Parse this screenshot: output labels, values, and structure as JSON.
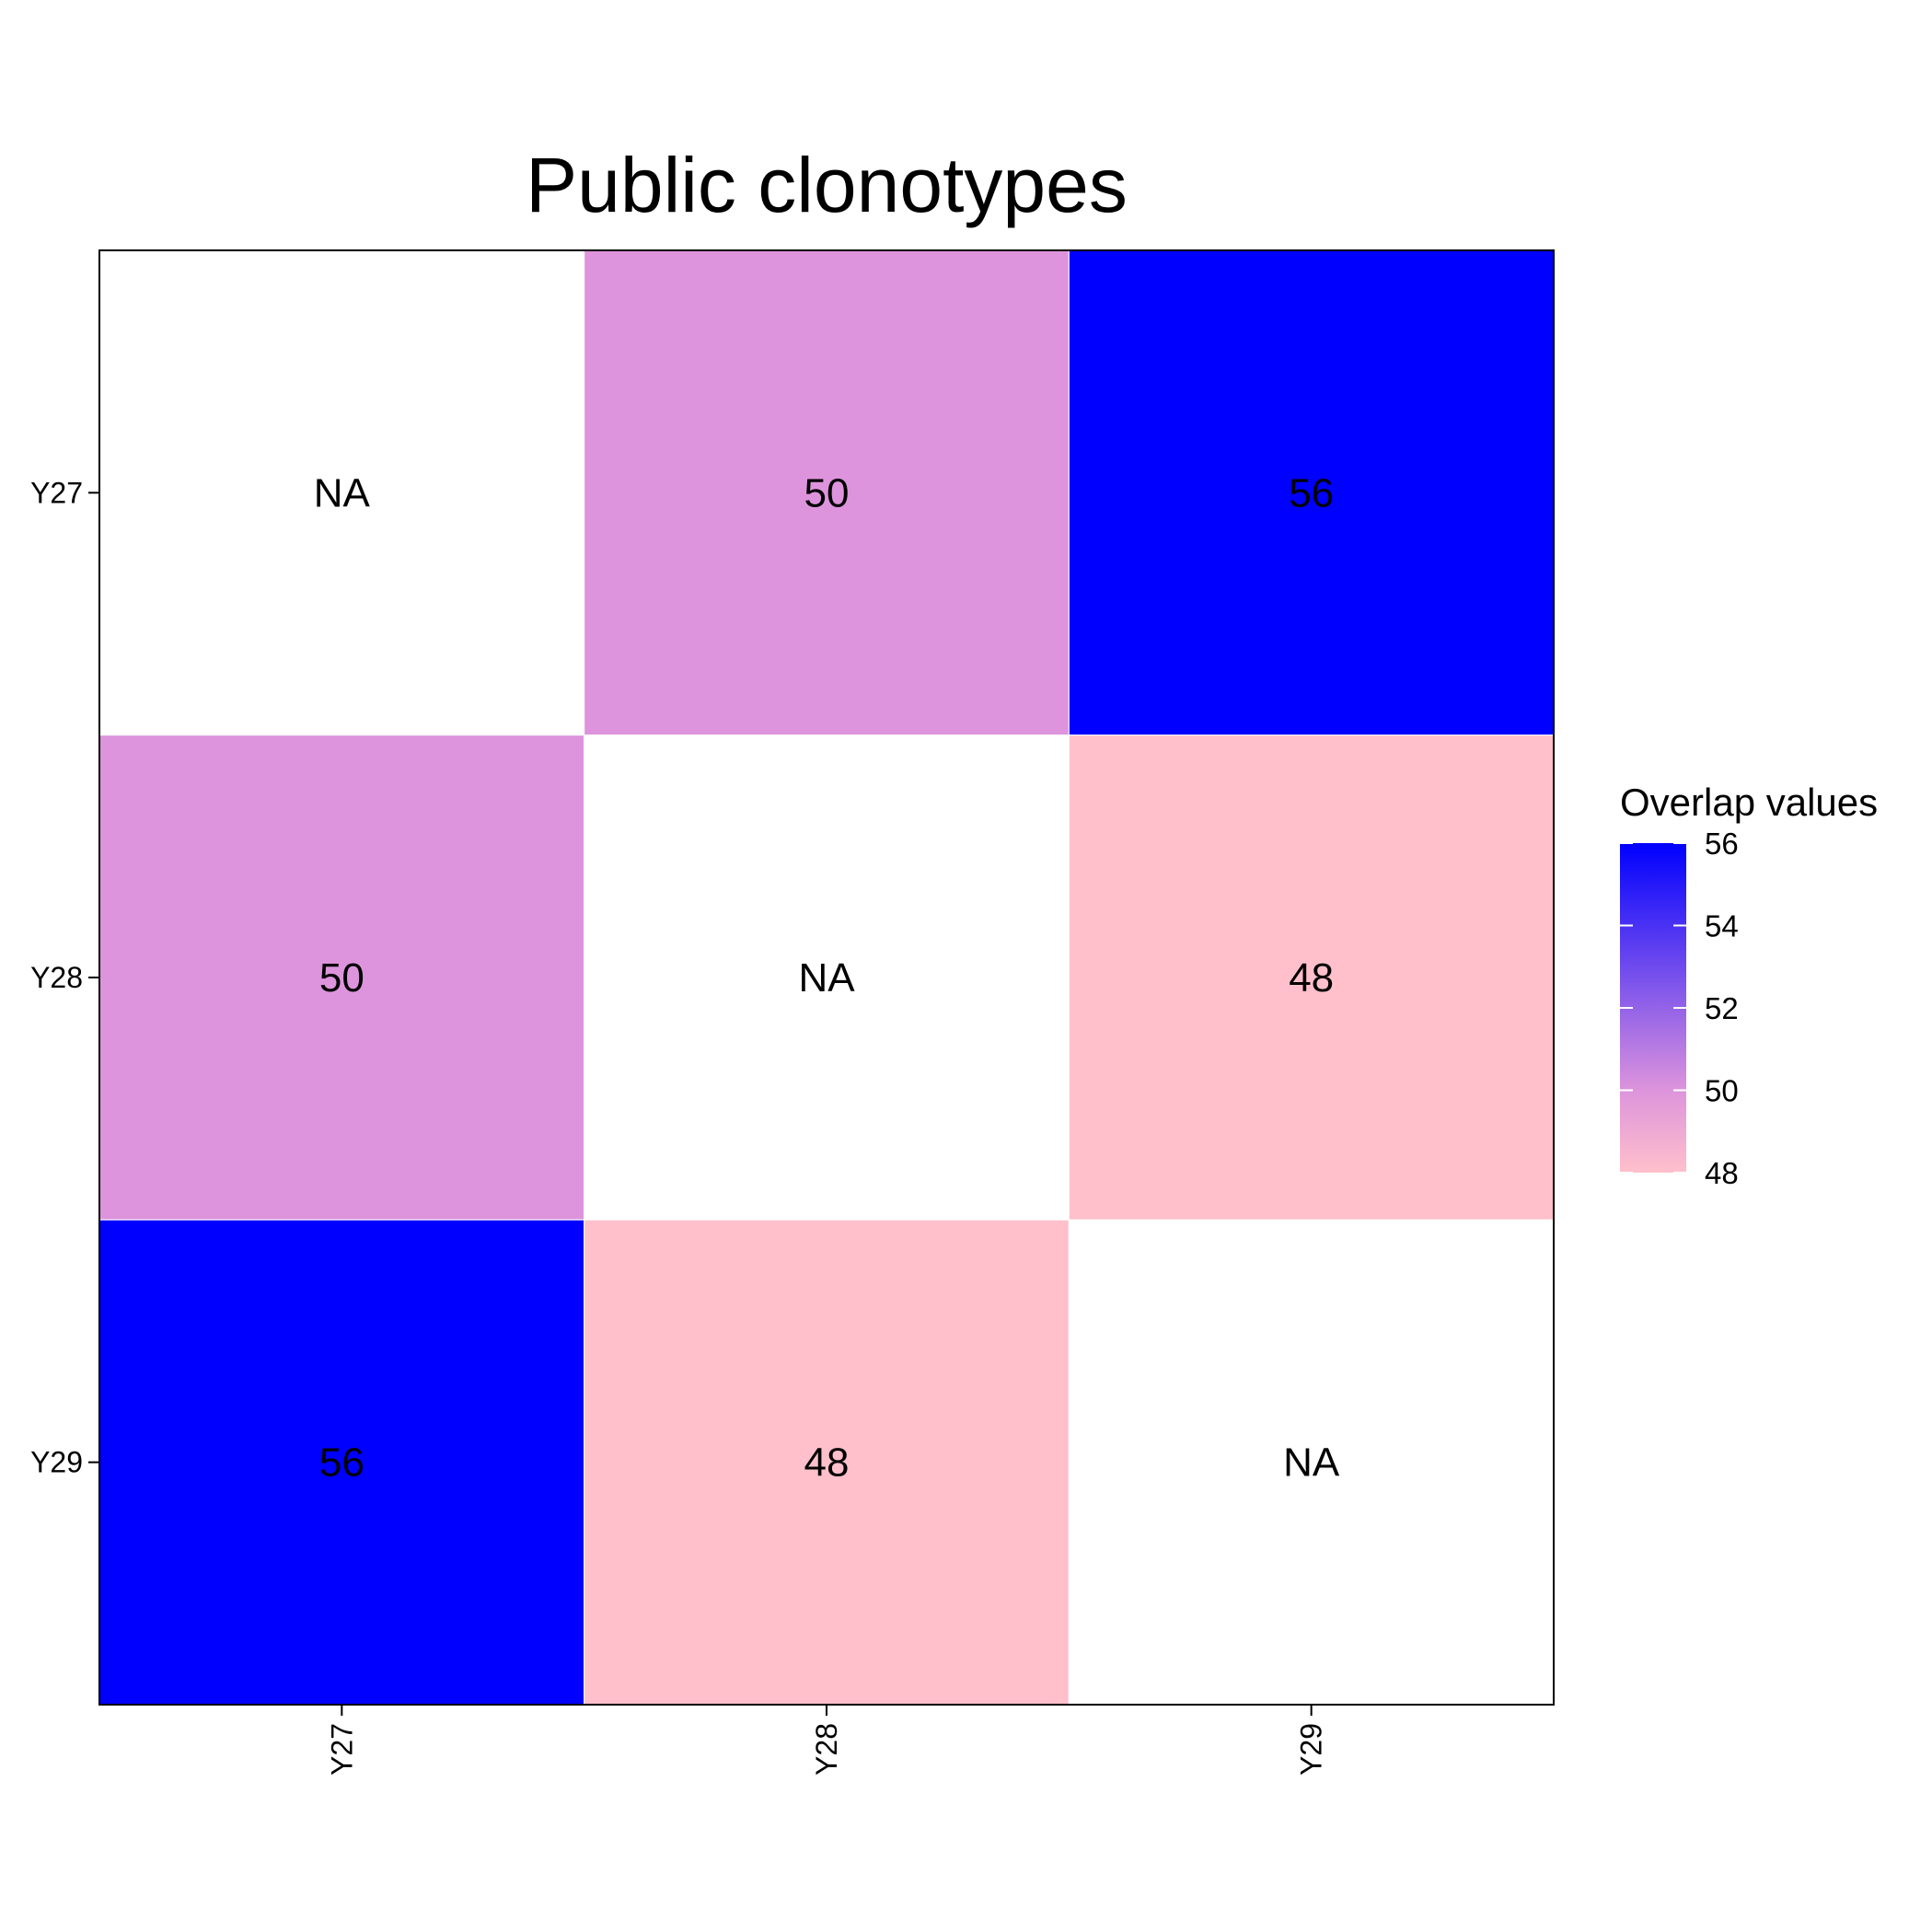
{
  "chart_data": {
    "type": "heatmap",
    "title": "Public clonotypes",
    "x_categories": [
      "Y27",
      "Y28",
      "Y29"
    ],
    "y_categories": [
      "Y27",
      "Y28",
      "Y29"
    ],
    "values": [
      [
        null,
        50,
        56
      ],
      [
        50,
        null,
        48
      ],
      [
        56,
        48,
        null
      ]
    ],
    "na_label": "NA",
    "na_color": "#ffffff",
    "legend": {
      "title": "Overlap values",
      "min": 48,
      "max": 56,
      "ticks": [
        48,
        50,
        52,
        54,
        56
      ],
      "low_color": "#ffc0cb",
      "mid_color": "#dd94dc",
      "high_color": "#0000ff",
      "placement": "right"
    },
    "grid": false
  }
}
